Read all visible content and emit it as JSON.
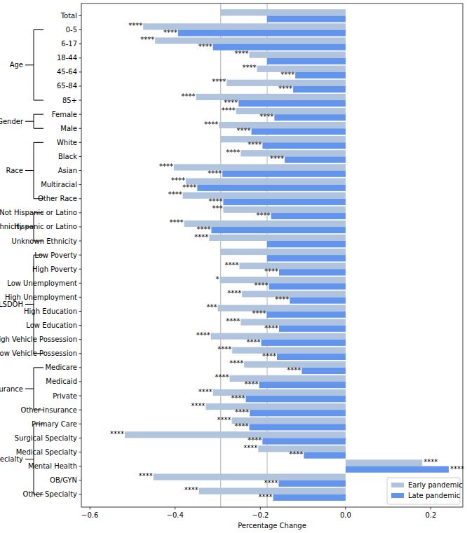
{
  "chart_data": {
    "type": "bar",
    "orientation": "horizontal",
    "x_label": "Percentage Change",
    "categories": [
      "Total",
      "0-5",
      "6-17",
      "18-44",
      "45-64",
      "65-84",
      "85+",
      "Female",
      "Male",
      "White",
      "Black",
      "Asian",
      "Multiracial",
      "Other Race",
      "Not Hispanic or Latino",
      "Hispanic or Latino",
      "Unknown Ethnicity",
      "Low Poverty",
      "High Poverty",
      "Low Unemployment",
      "High Unemployment",
      "High Education",
      "Low Education",
      "High Vehicle Possession",
      "Low Vehicle Possession",
      "Medicare",
      "Medicaid",
      "Private",
      "Other insurance",
      "Primary Care",
      "Surgical Specialty",
      "Medical Specialty",
      "Mental Health",
      "OB/GYN",
      "Other Specialty"
    ],
    "groups": [
      {
        "label": "Age",
        "members": [
          "0-5",
          "6-17",
          "18-44",
          "45-64",
          "65-84",
          "85+"
        ]
      },
      {
        "label": "Gender",
        "members": [
          "Female",
          "Male"
        ]
      },
      {
        "label": "Race",
        "members": [
          "White",
          "Black",
          "Asian",
          "Multiracial",
          "Other Race"
        ]
      },
      {
        "label": "Ethnicity",
        "members": [
          "Not Hispanic or Latino",
          "Hispanic or Latino",
          "Unknown Ethnicity"
        ]
      },
      {
        "label": "NLSDOH",
        "members": [
          "Low Poverty",
          "High Poverty",
          "Low Unemployment",
          "High Unemployment",
          "High Education",
          "Low Education",
          "High Vehicle Possession",
          "Low Vehicle Possession"
        ]
      },
      {
        "label": "Insurance",
        "members": [
          "Medicare",
          "Medicaid",
          "Private",
          "Other insurance"
        ]
      },
      {
        "label": "Specialty",
        "members": [
          "Primary Care",
          "Surgical Specialty",
          "Medical Specialty",
          "Mental Health",
          "OB/GYN",
          "Other Specialty"
        ]
      }
    ],
    "series": [
      {
        "name": "Early pandemic",
        "color": "#b0c4de",
        "values": [
          -0.293,
          -0.475,
          -0.447,
          -0.226,
          -0.208,
          -0.279,
          -0.351,
          -0.257,
          -0.297,
          -0.293,
          -0.246,
          -0.403,
          -0.375,
          -0.382,
          -0.287,
          -0.379,
          -0.32,
          -0.293,
          -0.249,
          -0.295,
          -0.243,
          -0.3,
          -0.246,
          -0.316,
          -0.266,
          -0.238,
          -0.272,
          -0.311,
          -0.328,
          -0.267,
          -0.518,
          -0.205,
          0.18,
          -0.451,
          -0.344
        ],
        "significance": [
          null,
          "****",
          "****",
          "****",
          "****",
          "****",
          "****",
          "****",
          "****",
          null,
          "****",
          "****",
          "****",
          "****",
          "***",
          "****",
          "****",
          null,
          "****",
          "*",
          "****",
          "***",
          "****",
          "****",
          "****",
          "****",
          "****",
          "****",
          "****",
          "****",
          "****",
          "****",
          "****",
          "****",
          "****"
        ]
      },
      {
        "name": "Late pandemic",
        "color": "#6495ed",
        "values": [
          -0.184,
          -0.393,
          -0.311,
          -0.184,
          -0.118,
          -0.123,
          -0.251,
          -0.167,
          -0.221,
          -0.195,
          -0.143,
          -0.289,
          -0.348,
          -0.287,
          -0.175,
          -0.315,
          -0.184,
          -0.184,
          -0.156,
          -0.18,
          -0.131,
          -0.185,
          -0.156,
          -0.198,
          -0.161,
          -0.103,
          -0.203,
          -0.234,
          -0.225,
          -0.226,
          -0.195,
          -0.098,
          0.242,
          -0.157,
          -0.17
        ],
        "significance": [
          null,
          "****",
          "****",
          null,
          "****",
          "****",
          "****",
          "****",
          "****",
          "****",
          "****",
          "****",
          "****",
          "****",
          "****",
          "****",
          null,
          null,
          "****",
          "****",
          "****",
          "****",
          "****",
          "****",
          "****",
          "****",
          "****",
          "****",
          "****",
          "****",
          "****",
          "****",
          "****",
          "****",
          "****"
        ]
      }
    ],
    "reference_lines": [
      -0.293,
      -0.184
    ],
    "xlim": [
      -0.62,
      0.275
    ],
    "xticks": [
      {
        "value": -0.6,
        "label": "−0.6"
      },
      {
        "value": -0.4,
        "label": "−0.4"
      },
      {
        "value": -0.2,
        "label": "−0.2"
      },
      {
        "value": 0,
        "label": "0.0"
      },
      0.2
    ],
    "legend": "lower right",
    "grid": false
  }
}
